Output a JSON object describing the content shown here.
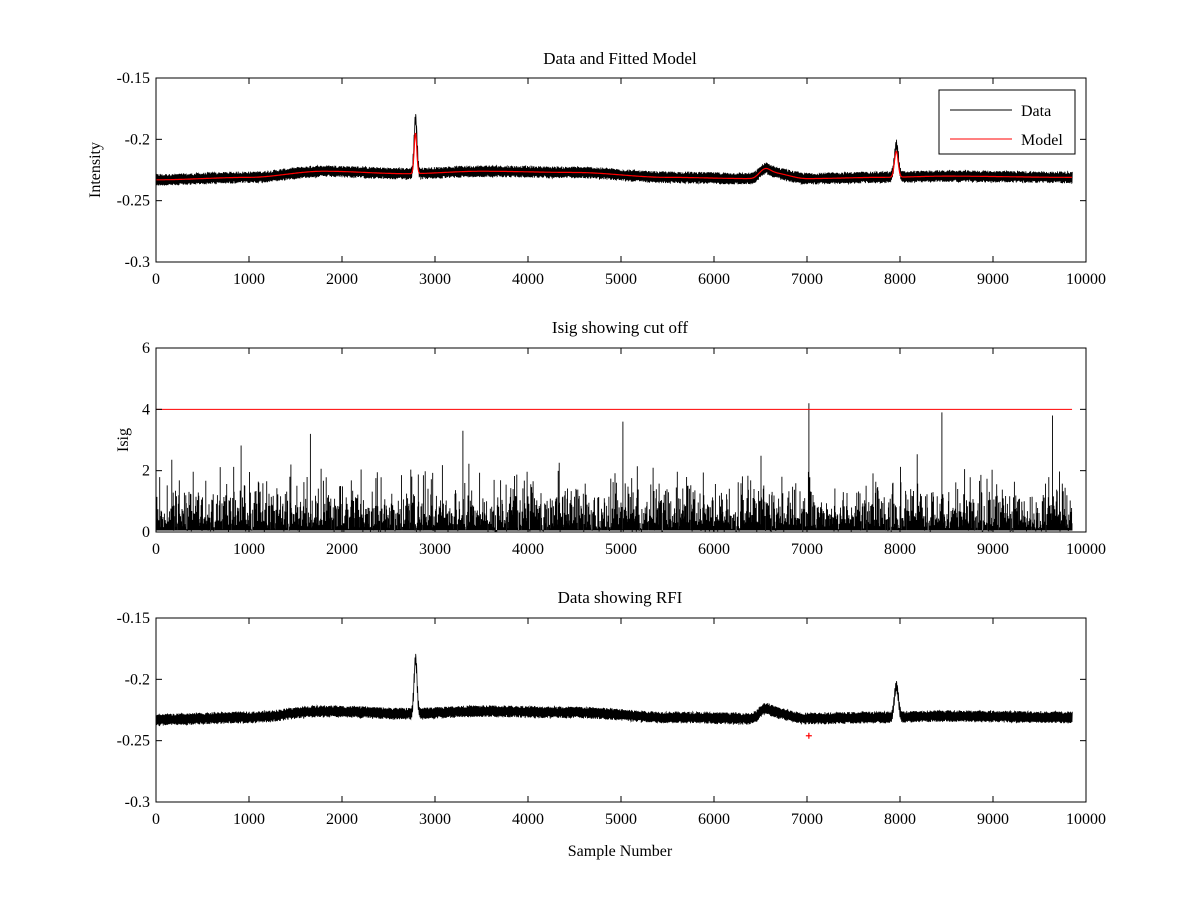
{
  "figure": {
    "xlabel": "Sample Number",
    "colors": {
      "data": "#000000",
      "model": "#ff0000",
      "cutoff": "#ff0000",
      "rfi": "#ff0000",
      "background": "#ffffff"
    }
  },
  "chart_data": [
    {
      "type": "line",
      "title": "Data and Fitted Model",
      "xlabel": "",
      "ylabel": "Intensity",
      "xlim": [
        0,
        10000
      ],
      "ylim": [
        -0.3,
        -0.15
      ],
      "y_reversed": true,
      "xticks": [
        0,
        1000,
        2000,
        3000,
        4000,
        5000,
        6000,
        7000,
        8000,
        9000,
        10000
      ],
      "yticks": [
        -0.15,
        -0.2,
        -0.25,
        -0.3
      ],
      "xtick_labels": [
        "0",
        "1000",
        "2000",
        "3000",
        "4000",
        "5000",
        "6000",
        "7000",
        "8000",
        "9000",
        "10000"
      ],
      "ytick_labels": [
        "-0.15",
        "-0.2",
        "-0.25",
        "-0.3"
      ],
      "legend": {
        "position": "top-right",
        "entries": [
          "Data",
          "Model"
        ]
      },
      "series": [
        {
          "name": "Data",
          "color": "#000000",
          "kind": "noisy",
          "n_samples": 9850,
          "noise_amplitude": 0.004,
          "baseline": {
            "x": [
              0,
              1000,
              1800,
              2700,
              3500,
              4500,
              5500,
              6400,
              6600,
              7000,
              7800,
              8500,
              9850
            ],
            "y": [
              -0.233,
              -0.231,
              -0.226,
              -0.228,
              -0.226,
              -0.227,
              -0.231,
              -0.232,
              -0.227,
              -0.232,
              -0.231,
              -0.23,
              -0.231
            ]
          },
          "peaks": [
            {
              "x": 2790,
              "height": 0.045,
              "width": 22
            },
            {
              "x": 7960,
              "height": 0.026,
              "width": 30
            },
            {
              "x": 6540,
              "height": 0.004,
              "width": 80
            }
          ]
        },
        {
          "name": "Model",
          "color": "#ff0000",
          "kind": "smooth",
          "n_samples": 9850,
          "baseline": {
            "x": [
              0,
              1000,
              1800,
              2700,
              3500,
              4500,
              5500,
              6400,
              6600,
              7000,
              7800,
              8500,
              9850
            ],
            "y": [
              -0.233,
              -0.231,
              -0.226,
              -0.228,
              -0.226,
              -0.227,
              -0.231,
              -0.232,
              -0.227,
              -0.232,
              -0.231,
              -0.23,
              -0.231
            ]
          },
          "peaks": [
            {
              "x": 2790,
              "height": 0.033,
              "width": 20
            },
            {
              "x": 7960,
              "height": 0.021,
              "width": 28
            },
            {
              "x": 6540,
              "height": 0.004,
              "width": 80
            }
          ]
        }
      ]
    },
    {
      "type": "line",
      "title": "Isig showing cut off",
      "xlabel": "",
      "ylabel": "Isig",
      "xlim": [
        0,
        10000
      ],
      "ylim": [
        0,
        6
      ],
      "y_reversed": false,
      "xticks": [
        0,
        1000,
        2000,
        3000,
        4000,
        5000,
        6000,
        7000,
        8000,
        9000,
        10000
      ],
      "yticks": [
        0,
        2,
        4,
        6
      ],
      "xtick_labels": [
        "0",
        "1000",
        "2000",
        "3000",
        "4000",
        "5000",
        "6000",
        "7000",
        "8000",
        "9000",
        "10000"
      ],
      "ytick_labels": [
        "0",
        "2",
        "4",
        "6"
      ],
      "cutoff": {
        "value": 4,
        "x_range": [
          0,
          9850
        ],
        "color": "#ff0000"
      },
      "series": [
        {
          "name": "Isig",
          "color": "#000000",
          "kind": "abs-noise",
          "n_samples": 9850,
          "typical_max": 2.0,
          "spikes": [
            {
              "x": 7020,
              "y": 4.2
            },
            {
              "x": 8450,
              "y": 3.9
            },
            {
              "x": 9640,
              "y": 3.8
            },
            {
              "x": 5020,
              "y": 3.6
            },
            {
              "x": 1660,
              "y": 3.2
            },
            {
              "x": 3300,
              "y": 3.3
            }
          ]
        }
      ]
    },
    {
      "type": "line",
      "title": "Data showing RFI",
      "xlabel": "Sample Number",
      "ylabel": "",
      "xlim": [
        0,
        10000
      ],
      "ylim": [
        -0.3,
        -0.15
      ],
      "y_reversed": true,
      "xticks": [
        0,
        1000,
        2000,
        3000,
        4000,
        5000,
        6000,
        7000,
        8000,
        9000,
        10000
      ],
      "yticks": [
        -0.15,
        -0.2,
        -0.25,
        -0.3
      ],
      "xtick_labels": [
        "0",
        "1000",
        "2000",
        "3000",
        "4000",
        "5000",
        "6000",
        "7000",
        "8000",
        "9000",
        "10000"
      ],
      "ytick_labels": [
        "-0.15",
        "-0.2",
        "-0.25",
        "-0.3"
      ],
      "series": [
        {
          "name": "Data",
          "color": "#000000",
          "kind": "noisy",
          "n_samples": 9850,
          "noise_amplitude": 0.004,
          "baseline": {
            "x": [
              0,
              1000,
              1800,
              2700,
              3500,
              4500,
              5500,
              6400,
              6600,
              7000,
              7800,
              8500,
              9850
            ],
            "y": [
              -0.233,
              -0.231,
              -0.226,
              -0.228,
              -0.226,
              -0.227,
              -0.231,
              -0.232,
              -0.227,
              -0.232,
              -0.231,
              -0.23,
              -0.231
            ]
          },
          "peaks": [
            {
              "x": 2790,
              "height": 0.045,
              "width": 22
            },
            {
              "x": 7960,
              "height": 0.026,
              "width": 30
            },
            {
              "x": 6540,
              "height": 0.004,
              "width": 80
            }
          ]
        }
      ],
      "rfi_points": [
        {
          "x": 7020,
          "y": -0.246
        }
      ]
    }
  ]
}
